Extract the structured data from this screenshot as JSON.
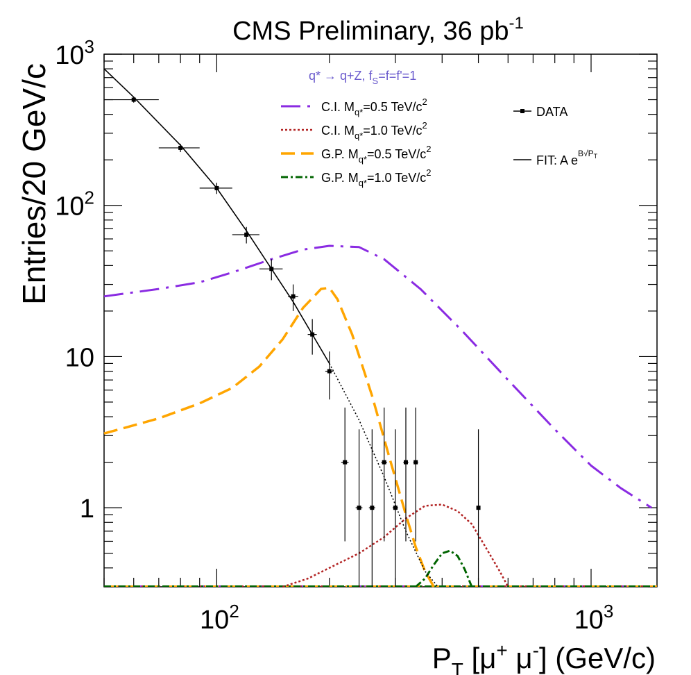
{
  "chart_data": {
    "type": "line",
    "title_main": "CMS Preliminary, 36 pb",
    "title_sup": "-1",
    "xlabel": {
      "p": "P",
      "p_sub": "T",
      "bracket_open": " [",
      "mu1": "μ",
      "mu1_sup": "+",
      "mu2": " μ",
      "mu2_sup": "-",
      "rest": "] (GeV/c)"
    },
    "ylabel": "Entries/20 GeV/c",
    "x_scale": "log",
    "y_scale": "log",
    "xlim": [
      50,
      1500
    ],
    "ylim": [
      0.3,
      1000
    ],
    "x_tick_labels": [
      {
        "value": 100,
        "base": "10",
        "exp": "2"
      },
      {
        "value": 1000,
        "base": "10",
        "exp": "3"
      }
    ],
    "y_tick_labels": [
      {
        "value": 1000,
        "base": "10",
        "exp": "3"
      },
      {
        "value": 100,
        "base": "10",
        "exp": "2"
      },
      {
        "value": 10,
        "base": "10",
        "exp": ""
      },
      {
        "value": 1,
        "base": "1",
        "exp": ""
      }
    ],
    "legend": {
      "header": {
        "pre": "q* → q+Z, f",
        "sub": "S",
        "post": "=f=f'=1"
      },
      "entries": [
        {
          "key": "ci05",
          "pre": "C.I. M",
          "sub": "q*",
          "post": "=0.5 TeV/c",
          "sup": "2"
        },
        {
          "key": "ci10",
          "pre": "C.I. M",
          "sub": "q*",
          "post": "=1.0 TeV/c",
          "sup": "2"
        },
        {
          "key": "gp05",
          "pre": "G.P. M",
          "sub": "q*",
          "post": "=0.5 TeV/c",
          "sup": "2"
        },
        {
          "key": "gp10",
          "pre": "G.P. M",
          "sub": "q*",
          "post": "=1.0 TeV/c",
          "sup": "2"
        }
      ],
      "data_label": "DATA",
      "fit_label": {
        "pre": "FIT: A e",
        "sup": "B√P",
        "sup_sub": "T"
      }
    },
    "colors": {
      "legend_header": "#6a5acd",
      "ci05": "#8a2be2",
      "ci10": "#b22222",
      "gp05": "#ffa500",
      "gp10": "#006400",
      "data": "#000000",
      "fit": "#000000"
    },
    "data_points": [
      {
        "x": 60,
        "y": 500,
        "xlo": 50,
        "xhi": 70,
        "ylo": 478,
        "yhi": 522
      },
      {
        "x": 80,
        "y": 240,
        "xlo": 70,
        "xhi": 90,
        "ylo": 225,
        "yhi": 255
      },
      {
        "x": 100,
        "y": 130,
        "xlo": 90,
        "xhi": 110,
        "ylo": 119,
        "yhi": 141
      },
      {
        "x": 120,
        "y": 64,
        "xlo": 110,
        "xhi": 130,
        "ylo": 56,
        "yhi": 72
      },
      {
        "x": 140,
        "y": 38,
        "xlo": 130,
        "xhi": 150,
        "ylo": 32,
        "yhi": 44
      },
      {
        "x": 160,
        "y": 25,
        "xlo": 155,
        "xhi": 165,
        "ylo": 20,
        "yhi": 30
      },
      {
        "x": 180,
        "y": 14,
        "xlo": 175,
        "xhi": 185,
        "ylo": 10.3,
        "yhi": 17.7
      },
      {
        "x": 200,
        "y": 8,
        "xlo": 195,
        "xhi": 205,
        "ylo": 5.2,
        "yhi": 10.8
      },
      {
        "x": 220,
        "y": 2,
        "xlo": 215,
        "xhi": 225,
        "ylo": 0.6,
        "yhi": 4.6
      },
      {
        "x": 240,
        "y": 1,
        "xlo": 235,
        "xhi": 245,
        "ylo": 0.3,
        "yhi": 3.3
      },
      {
        "x": 260,
        "y": 1,
        "xlo": 255,
        "xhi": 265,
        "ylo": 0.3,
        "yhi": 3.3
      },
      {
        "x": 280,
        "y": 2,
        "xlo": 275,
        "xhi": 285,
        "ylo": 0.6,
        "yhi": 4.6
      },
      {
        "x": 300,
        "y": 1,
        "xlo": 295,
        "xhi": 305,
        "ylo": 0.3,
        "yhi": 3.3
      },
      {
        "x": 320,
        "y": 2,
        "xlo": 315,
        "xhi": 325,
        "ylo": 0.6,
        "yhi": 4.6
      },
      {
        "x": 340,
        "y": 2,
        "xlo": 335,
        "xhi": 345,
        "ylo": 0.6,
        "yhi": 4.6
      },
      {
        "x": 500,
        "y": 1,
        "xlo": 495,
        "xhi": 505,
        "ylo": 0.3,
        "yhi": 3.3
      }
    ],
    "fit_solid": [
      [
        50,
        800
      ],
      [
        60,
        520
      ],
      [
        80,
        250
      ],
      [
        100,
        130
      ],
      [
        120,
        68
      ],
      [
        140,
        38
      ],
      [
        160,
        23
      ],
      [
        180,
        14
      ],
      [
        200,
        9
      ]
    ],
    "fit_dotted": [
      [
        200,
        9
      ],
      [
        240,
        3.8
      ],
      [
        280,
        1.6
      ],
      [
        320,
        0.7
      ],
      [
        360,
        0.38
      ],
      [
        390,
        0.3
      ]
    ],
    "series": [
      {
        "key": "ci05",
        "values": [
          [
            50,
            25
          ],
          [
            70,
            28
          ],
          [
            90,
            31
          ],
          [
            110,
            36
          ],
          [
            140,
            44
          ],
          [
            170,
            51
          ],
          [
            200,
            54
          ],
          [
            240,
            53
          ],
          [
            280,
            44
          ],
          [
            350,
            28
          ],
          [
            450,
            15
          ],
          [
            600,
            7
          ],
          [
            800,
            3.3
          ],
          [
            1000,
            1.9
          ],
          [
            1200,
            1.35
          ],
          [
            1450,
            1.0
          ]
        ]
      },
      {
        "key": "ci10",
        "values": [
          [
            150,
            0.3
          ],
          [
            175,
            0.34
          ],
          [
            200,
            0.4
          ],
          [
            240,
            0.5
          ],
          [
            280,
            0.64
          ],
          [
            320,
            0.85
          ],
          [
            360,
            1.03
          ],
          [
            400,
            1.05
          ],
          [
            440,
            0.95
          ],
          [
            480,
            0.78
          ],
          [
            520,
            0.56
          ],
          [
            570,
            0.38
          ],
          [
            600,
            0.3
          ]
        ]
      },
      {
        "key": "gp05",
        "values": [
          [
            50,
            3.1
          ],
          [
            70,
            3.9
          ],
          [
            90,
            4.9
          ],
          [
            110,
            6.2
          ],
          [
            130,
            8.6
          ],
          [
            150,
            13
          ],
          [
            170,
            21
          ],
          [
            190,
            28
          ],
          [
            200,
            28.5
          ],
          [
            210,
            24
          ],
          [
            230,
            14
          ],
          [
            260,
            5.5
          ],
          [
            290,
            2.1
          ],
          [
            320,
            0.9
          ],
          [
            340,
            0.55
          ],
          [
            360,
            0.38
          ],
          [
            380,
            0.3
          ]
        ]
      },
      {
        "key": "gp10",
        "values": [
          [
            340,
            0.3
          ],
          [
            360,
            0.34
          ],
          [
            380,
            0.42
          ],
          [
            400,
            0.5
          ],
          [
            420,
            0.52
          ],
          [
            440,
            0.48
          ],
          [
            460,
            0.39
          ],
          [
            480,
            0.3
          ]
        ]
      }
    ]
  }
}
